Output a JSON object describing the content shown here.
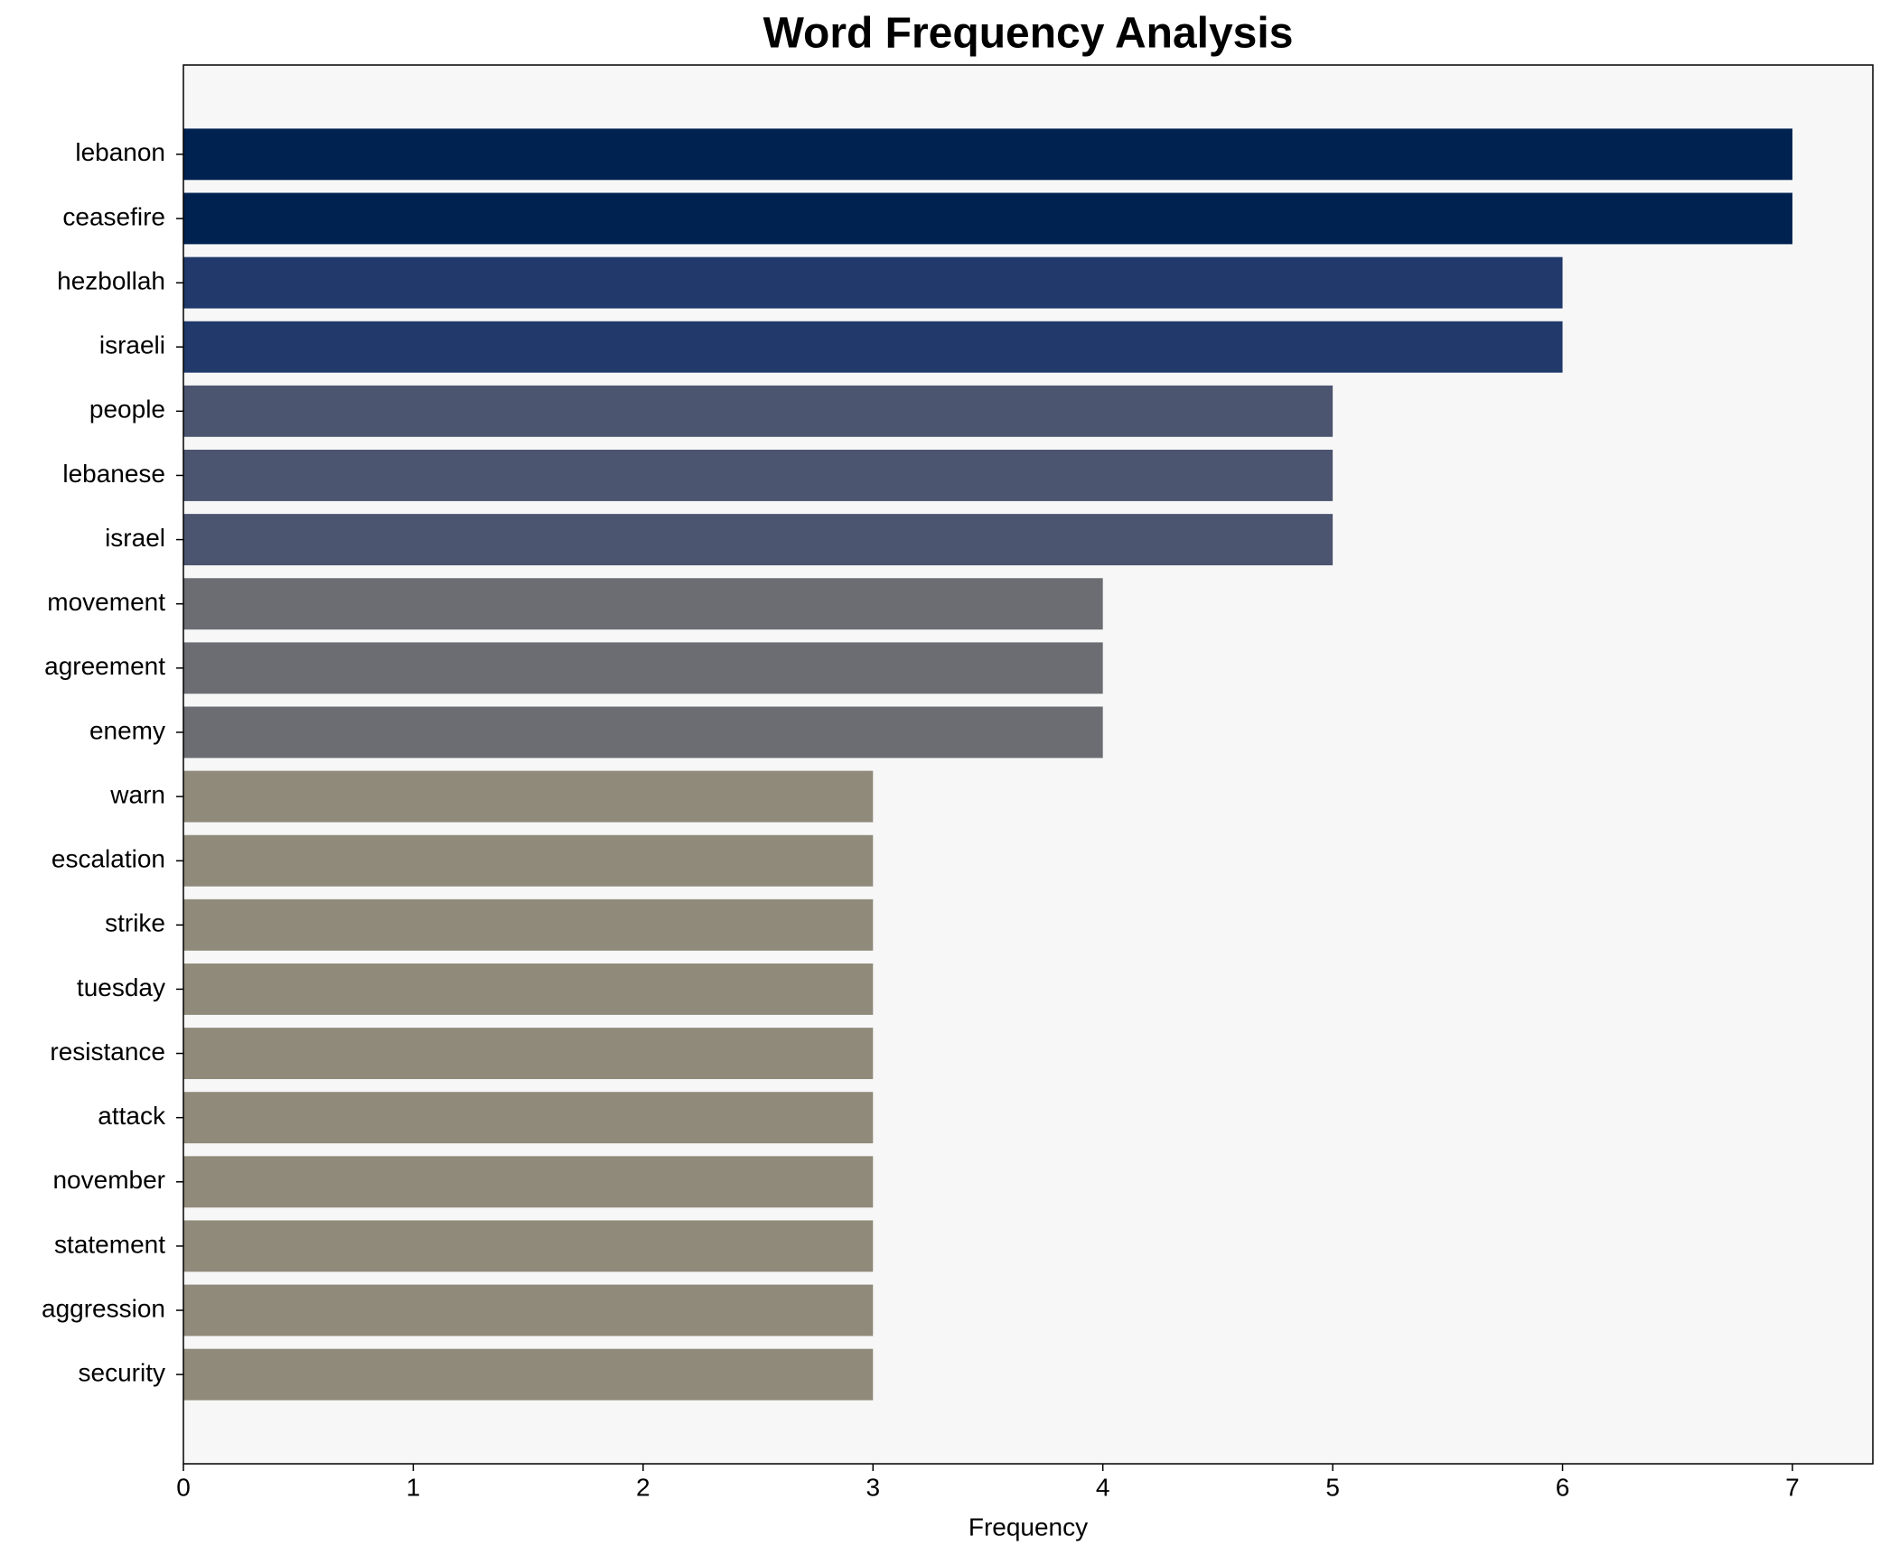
{
  "chart_data": {
    "type": "barh",
    "title": "Word Frequency Analysis",
    "x_label": "Frequency",
    "categories": [
      "lebanon",
      "ceasefire",
      "hezbollah",
      "israeli",
      "people",
      "lebanese",
      "israel",
      "movement",
      "agreement",
      "enemy",
      "warn",
      "escalation",
      "strike",
      "tuesday",
      "resistance",
      "attack",
      "november",
      "statement",
      "aggression",
      "security"
    ],
    "values": [
      7,
      7,
      6,
      6,
      5,
      5,
      5,
      4,
      4,
      4,
      3,
      3,
      3,
      3,
      3,
      3,
      3,
      3,
      3,
      3
    ],
    "colors": [
      "#002251",
      "#002251",
      "#213a6b",
      "#213a6b",
      "#4c556f",
      "#4c556f",
      "#4c556f",
      "#6c6d73",
      "#6c6d73",
      "#6c6d73",
      "#8f8a7a",
      "#8f8a7a",
      "#8f8a7a",
      "#8f8a7a",
      "#8f8a7a",
      "#8f8a7a",
      "#8f8a7a",
      "#8f8a7a",
      "#8f8a7a",
      "#8f8a7a"
    ],
    "xlim": [
      0,
      7.35
    ],
    "xticks": [
      0,
      1,
      2,
      3,
      4,
      5,
      6,
      7
    ],
    "background": "#f7f7f7"
  }
}
